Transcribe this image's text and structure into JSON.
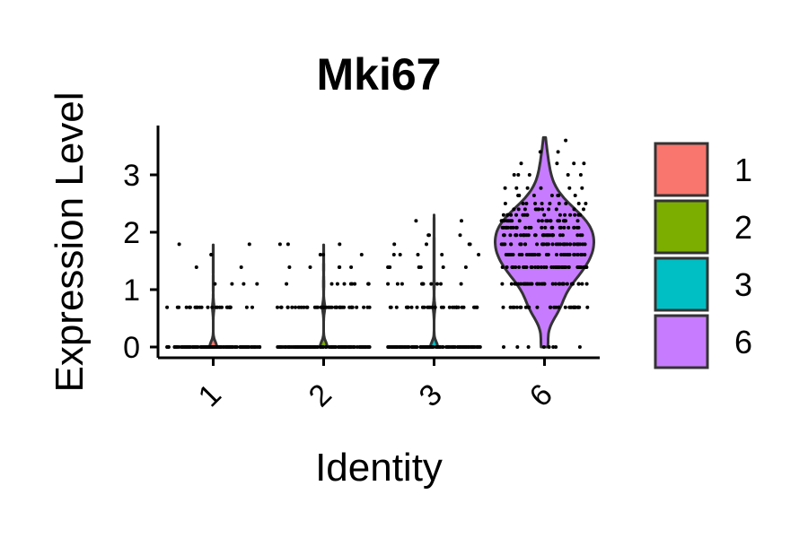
{
  "chart_data": {
    "type": "violin",
    "title": "Mki67",
    "xlabel": "Identity",
    "ylabel": "Expression Level",
    "ylim": [
      -0.2,
      3.8
    ],
    "y_ticks": [
      0,
      1,
      2,
      3
    ],
    "categories": [
      "1",
      "2",
      "3",
      "6"
    ],
    "colors": [
      "#F8766D",
      "#7CAE00",
      "#00BFC4",
      "#C77CFF"
    ],
    "series": [
      {
        "category": "1",
        "max": 1.78,
        "levels": [
          [
            0,
            120
          ],
          [
            0.69,
            26
          ],
          [
            1.1,
            4
          ],
          [
            1.39,
            2
          ],
          [
            1.61,
            2
          ],
          [
            1.79,
            2
          ]
        ]
      },
      {
        "category": "2",
        "max": 1.78,
        "levels": [
          [
            0,
            120
          ],
          [
            0.69,
            40
          ],
          [
            1.1,
            10
          ],
          [
            1.39,
            5
          ],
          [
            1.61,
            3
          ],
          [
            1.79,
            3
          ]
        ]
      },
      {
        "category": "3",
        "max": 2.3,
        "levels": [
          [
            0,
            120
          ],
          [
            0.69,
            30
          ],
          [
            1.1,
            10
          ],
          [
            1.39,
            7
          ],
          [
            1.61,
            5
          ],
          [
            1.79,
            4
          ],
          [
            1.95,
            3
          ],
          [
            2.2,
            2
          ]
        ]
      },
      {
        "category": "6",
        "max": 3.65,
        "levels": [
          [
            0,
            8
          ],
          [
            0.69,
            30
          ],
          [
            1.1,
            36
          ],
          [
            1.39,
            44
          ],
          [
            1.61,
            40
          ],
          [
            1.79,
            36
          ],
          [
            1.95,
            30
          ],
          [
            2.08,
            26
          ],
          [
            2.2,
            22
          ],
          [
            2.3,
            16
          ],
          [
            2.4,
            12
          ],
          [
            2.5,
            10
          ],
          [
            2.64,
            8
          ],
          [
            2.77,
            6
          ],
          [
            3.0,
            5
          ],
          [
            3.2,
            4
          ],
          [
            3.4,
            2
          ],
          [
            3.6,
            1
          ]
        ]
      }
    ],
    "legend": {
      "position": "right",
      "entries": [
        "1",
        "2",
        "3",
        "6"
      ]
    }
  }
}
